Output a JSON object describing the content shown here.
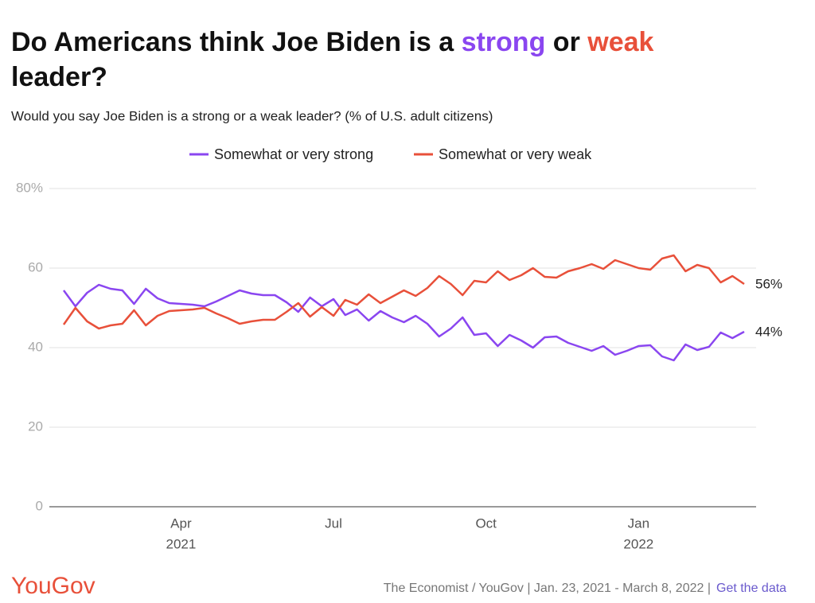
{
  "chart_data": {
    "type": "line",
    "title_parts": [
      {
        "text": "Do Americans think Joe Biden is a "
      },
      {
        "text": "strong",
        "color": "#8a46f0"
      },
      {
        "text": " or "
      },
      {
        "text": "weak",
        "color": "#e8503a"
      },
      {
        "text": " leader?"
      }
    ],
    "subtitle": "Would you say Joe Biden is a strong or a weak leader? (% of U.S. adult citizens)",
    "categories": [
      null,
      null,
      null,
      null,
      null,
      null,
      null,
      null,
      null,
      null,
      "Apr",
      null,
      null,
      null,
      null,
      null,
      null,
      null,
      null,
      null,
      null,
      null,
      null,
      "Jul",
      null,
      null,
      null,
      null,
      null,
      null,
      null,
      null,
      null,
      null,
      null,
      null,
      "Oct",
      null,
      null,
      null,
      null,
      null,
      null,
      null,
      null,
      null,
      null,
      null,
      null,
      "Jan",
      null,
      null,
      null,
      null,
      null,
      null,
      null,
      null,
      null
    ],
    "category_sublabels": [
      null,
      null,
      null,
      null,
      null,
      null,
      null,
      null,
      null,
      null,
      "2021",
      null,
      null,
      null,
      null,
      null,
      null,
      null,
      null,
      null,
      null,
      null,
      null,
      null,
      null,
      null,
      null,
      null,
      null,
      null,
      null,
      null,
      null,
      null,
      null,
      null,
      null,
      null,
      null,
      null,
      null,
      null,
      null,
      null,
      null,
      null,
      null,
      null,
      null,
      "2022",
      null,
      null,
      null,
      null,
      null,
      null,
      null,
      null,
      null
    ],
    "series": [
      {
        "name": "Somewhat or very strong",
        "color": "#8a46f0",
        "end_label": "44%",
        "values": [
          54.4,
          50.4,
          53.8,
          55.8,
          54.8,
          54.4,
          51,
          54.8,
          52.4,
          51.2,
          51,
          50.8,
          50.4,
          51.6,
          53,
          54.4,
          53.6,
          53.2,
          53.2,
          51.4,
          49,
          52.6,
          50.4,
          52.2,
          48.2,
          49.6,
          46.8,
          49.2,
          47.6,
          46.4,
          48,
          46,
          42.8,
          44.8,
          47.6,
          43.2,
          43.6,
          40.4,
          43.2,
          41.8,
          40,
          42.6,
          42.8,
          41.2,
          40.2,
          39.2,
          40.4,
          38.2,
          39.2,
          40.4,
          40.6,
          37.8,
          36.8,
          40.8,
          39.4,
          40.2,
          43.8,
          42.4,
          44
        ]
      },
      {
        "name": "Somewhat or very weak",
        "color": "#e8503a",
        "end_label": "56%",
        "values": [
          45.8,
          50,
          46.6,
          44.8,
          45.6,
          46,
          49.4,
          45.6,
          48,
          49.2,
          49.4,
          49.6,
          50,
          48.6,
          47.4,
          46,
          46.6,
          47,
          47,
          49,
          51.2,
          47.8,
          50.2,
          48,
          52,
          50.8,
          53.4,
          51.2,
          52.8,
          54.4,
          53,
          55,
          58,
          56,
          53.2,
          56.8,
          56.4,
          59.2,
          57,
          58.2,
          60,
          57.8,
          57.6,
          59.2,
          60,
          61,
          59.8,
          62,
          61,
          60,
          59.6,
          62.4,
          63.2,
          59.2,
          60.8,
          60,
          56.4,
          58,
          56
        ]
      }
    ],
    "ylim": [
      0,
      80
    ],
    "yticks": [
      0,
      20,
      40,
      60,
      {
        "value": 80,
        "label": "80%"
      }
    ],
    "grid": true,
    "legend": "top",
    "logo": "YouGov",
    "source": "The Economist / YouGov | Jan. 23, 2021 - March 8, 2022 |",
    "link": "Get the data"
  }
}
